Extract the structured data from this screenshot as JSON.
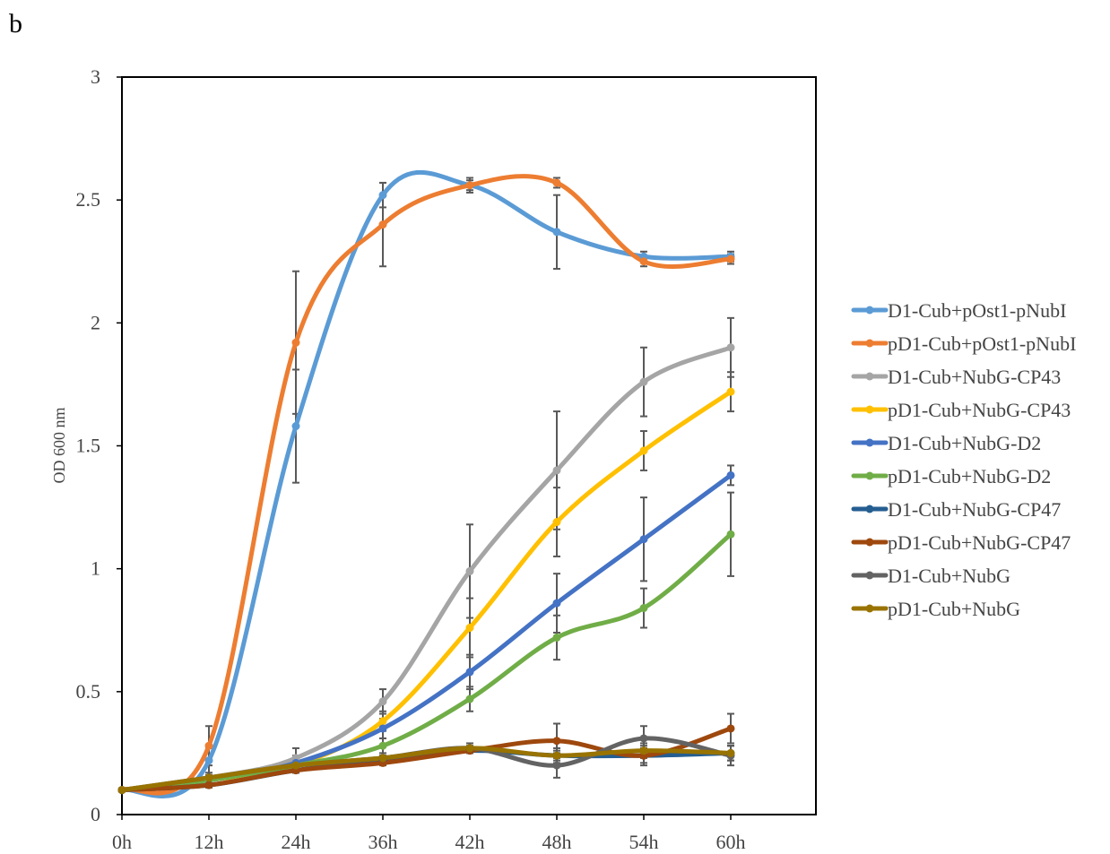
{
  "panel_label": "b",
  "chart_data": {
    "type": "line",
    "title": "",
    "xlabel": "",
    "ylabel": "OD 600 nm",
    "categories": [
      "0h",
      "12h",
      "24h",
      "36h",
      "42h",
      "48h",
      "54h",
      "60h"
    ],
    "ylim": [
      0,
      3
    ],
    "yticks": [
      0,
      0.5,
      1,
      1.5,
      2,
      2.5,
      3
    ],
    "ytick_labels": [
      "0",
      "0.5",
      "1",
      "1.5",
      "2",
      "2.5",
      "3"
    ],
    "grid": false,
    "smooth": true,
    "legend_position": "right",
    "series": [
      {
        "name": "D1-Cub+pOst1-pNubI",
        "color": "#5b9bd5",
        "values": [
          0.1,
          0.22,
          1.58,
          2.52,
          2.56,
          2.37,
          2.27,
          2.27
        ],
        "errors": [
          0.0,
          0.05,
          0.23,
          0.05,
          0.03,
          0.15,
          0.02,
          0.02
        ]
      },
      {
        "name": "pD1-Cub+pOst1-pNubI",
        "color": "#ed7d31",
        "values": [
          0.1,
          0.28,
          1.92,
          2.4,
          2.56,
          2.57,
          2.25,
          2.26
        ],
        "errors": [
          0.0,
          0.08,
          0.29,
          0.17,
          0.02,
          0.02,
          0.02,
          0.02
        ]
      },
      {
        "name": "D1-Cub+NubG-CP43",
        "color": "#a5a5a5",
        "values": [
          0.1,
          0.15,
          0.23,
          0.46,
          0.99,
          1.4,
          1.76,
          1.9
        ],
        "errors": [
          0.0,
          0.02,
          0.04,
          0.05,
          0.19,
          0.24,
          0.14,
          0.12
        ]
      },
      {
        "name": "pD1-Cub+NubG-CP43",
        "color": "#ffc000",
        "values": [
          0.1,
          0.14,
          0.2,
          0.38,
          0.76,
          1.19,
          1.48,
          1.72
        ],
        "errors": [
          0.0,
          0.02,
          0.03,
          0.04,
          0.12,
          0.14,
          0.08,
          0.08
        ]
      },
      {
        "name": "D1-Cub+NubG-D2",
        "color": "#4472c4",
        "values": [
          0.1,
          0.14,
          0.21,
          0.35,
          0.58,
          0.86,
          1.12,
          1.38
        ],
        "errors": [
          0.0,
          0.02,
          0.03,
          0.04,
          0.07,
          0.12,
          0.17,
          0.04
        ]
      },
      {
        "name": "pD1-Cub+NubG-D2",
        "color": "#70ad47",
        "values": [
          0.1,
          0.14,
          0.2,
          0.28,
          0.47,
          0.72,
          0.84,
          1.14
        ],
        "errors": [
          0.0,
          0.02,
          0.03,
          0.03,
          0.05,
          0.09,
          0.08,
          0.17
        ]
      },
      {
        "name": "D1-Cub+NubG-CP47",
        "color": "#255e91",
        "values": [
          0.1,
          0.12,
          0.18,
          0.22,
          0.26,
          0.24,
          0.24,
          0.25
        ],
        "errors": [
          0.0,
          0.01,
          0.01,
          0.01,
          0.01,
          0.02,
          0.03,
          0.03
        ]
      },
      {
        "name": "pD1-Cub+NubG-CP47",
        "color": "#9e480e",
        "values": [
          0.1,
          0.12,
          0.18,
          0.21,
          0.26,
          0.3,
          0.24,
          0.35
        ],
        "errors": [
          0.0,
          0.01,
          0.01,
          0.01,
          0.01,
          0.07,
          0.04,
          0.06
        ]
      },
      {
        "name": "D1-Cub+NubG",
        "color": "#636363",
        "values": [
          0.1,
          0.15,
          0.2,
          0.23,
          0.27,
          0.2,
          0.31,
          0.24
        ],
        "errors": [
          0.0,
          0.01,
          0.01,
          0.01,
          0.02,
          0.05,
          0.05,
          0.04
        ]
      },
      {
        "name": "pD1-Cub+NubG",
        "color": "#997300",
        "values": [
          0.1,
          0.15,
          0.2,
          0.23,
          0.27,
          0.24,
          0.26,
          0.25
        ],
        "errors": [
          0.0,
          0.01,
          0.01,
          0.01,
          0.01,
          0.03,
          0.03,
          0.03
        ]
      }
    ]
  }
}
